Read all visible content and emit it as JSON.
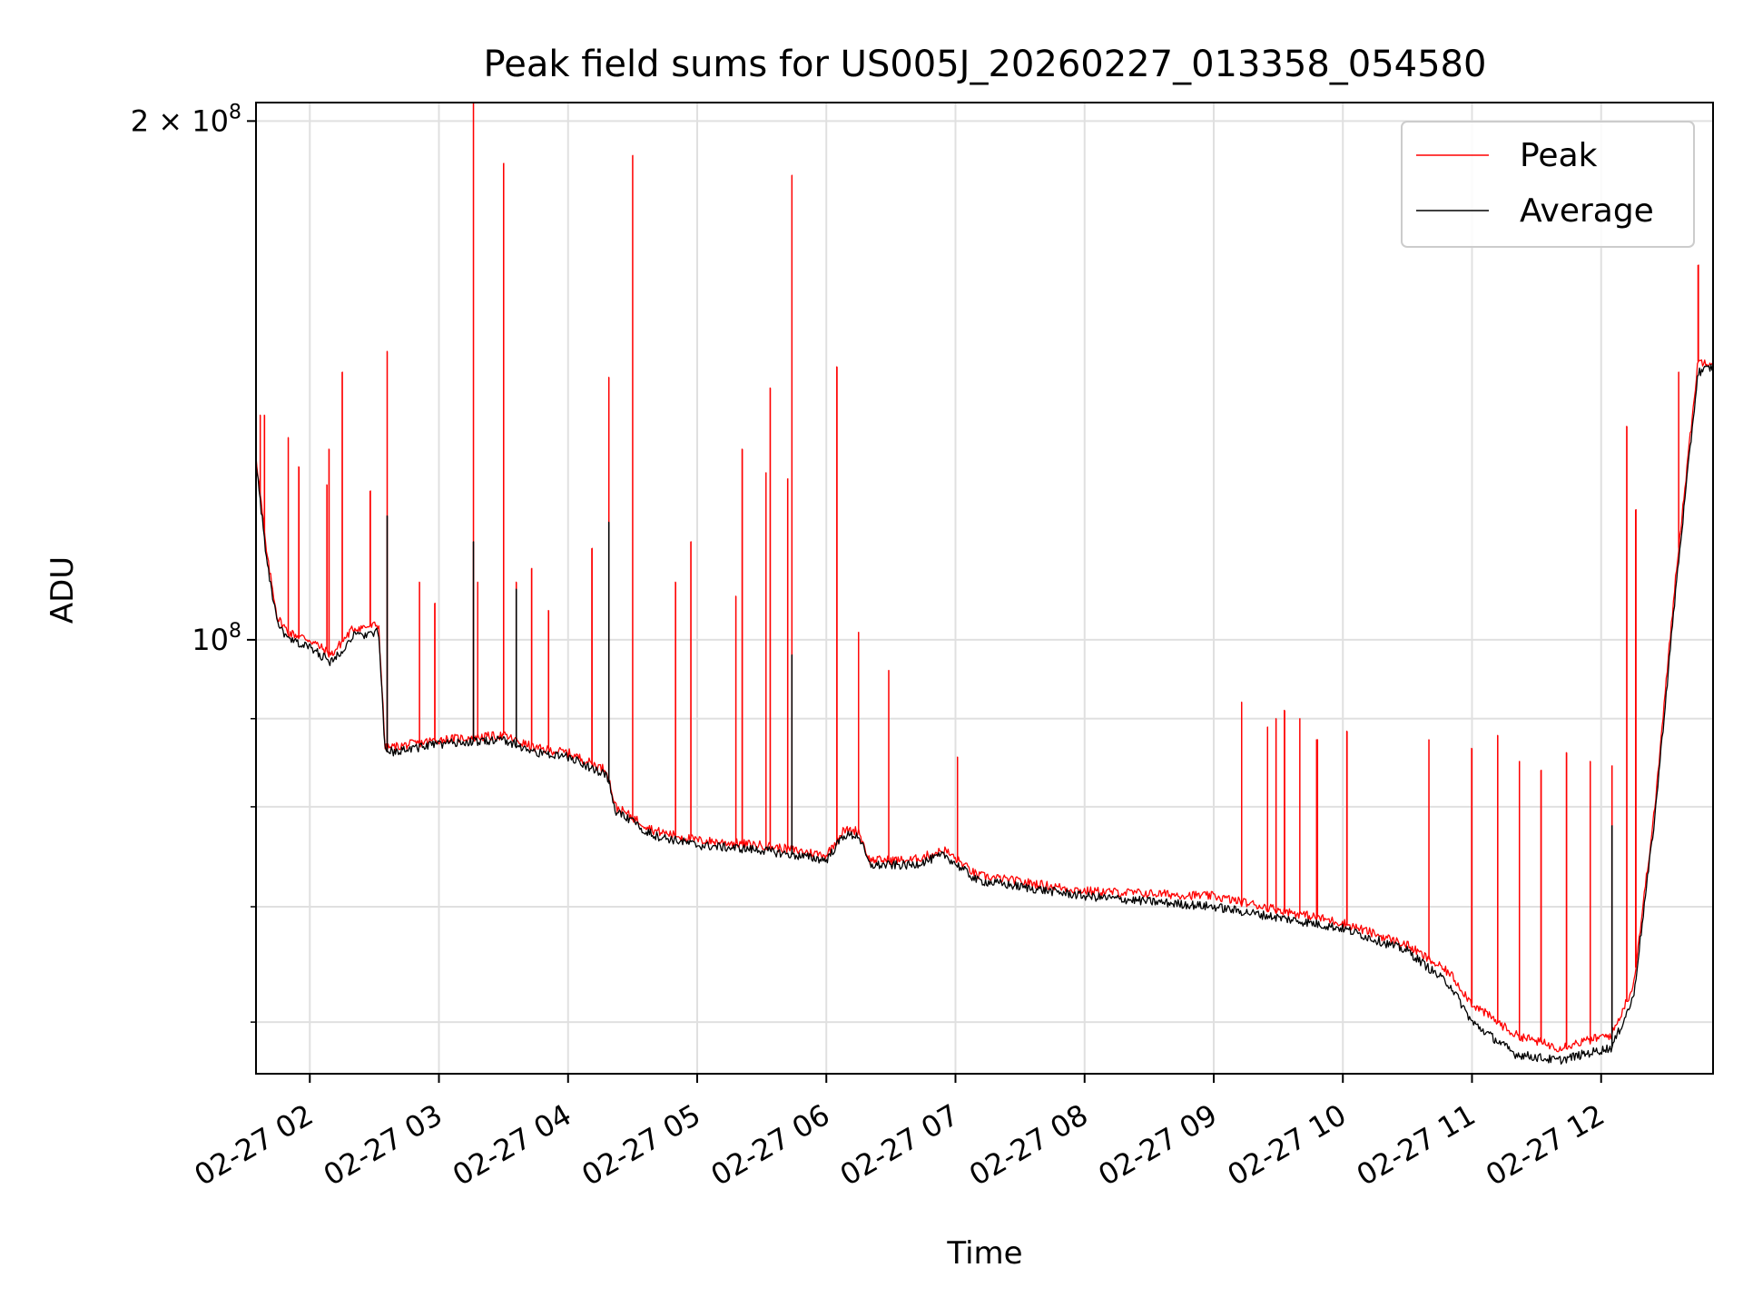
{
  "chart_data": {
    "type": "line",
    "title": "Peak field sums for US005J_20260227_013358_054580",
    "xlabel": "Time",
    "ylabel": "ADU",
    "y_scale": "log",
    "ylim": [
      56000000,
      205000000
    ],
    "xlim": [
      "2026-02-27 01:35",
      "2026-02-27 12:52"
    ],
    "grid": true,
    "legend_position": "top-right",
    "x_ticks": [
      {
        "value": "2026-02-27 02:00",
        "label": "02-27 02"
      },
      {
        "value": "2026-02-27 03:00",
        "label": "02-27 03"
      },
      {
        "value": "2026-02-27 04:00",
        "label": "02-27 04"
      },
      {
        "value": "2026-02-27 05:00",
        "label": "02-27 05"
      },
      {
        "value": "2026-02-27 06:00",
        "label": "02-27 06"
      },
      {
        "value": "2026-02-27 07:00",
        "label": "02-27 07"
      },
      {
        "value": "2026-02-27 08:00",
        "label": "02-27 08"
      },
      {
        "value": "2026-02-27 09:00",
        "label": "02-27 09"
      },
      {
        "value": "2026-02-27 10:00",
        "label": "02-27 10"
      },
      {
        "value": "2026-02-27 11:00",
        "label": "02-27 11"
      },
      {
        "value": "2026-02-27 12:00",
        "label": "02-27 12"
      }
    ],
    "y_major_ticks": [
      {
        "value": 100000000,
        "base": "10",
        "exp": "8",
        "coef": ""
      },
      {
        "value": 200000000,
        "base": "10",
        "exp": "8",
        "coef": "2 × "
      }
    ],
    "y_minor_ticks": [
      60000000,
      70000000,
      80000000,
      90000000
    ],
    "series": [
      {
        "name": "Peak",
        "color": "#ff0000",
        "baseline": [
          [
            "2026-02-27 01:35",
            128000000
          ],
          [
            "2026-02-27 01:40",
            112000000
          ],
          [
            "2026-02-27 01:45",
            103000000
          ],
          [
            "2026-02-27 01:50",
            101000000
          ],
          [
            "2026-02-27 02:00",
            100000000
          ],
          [
            "2026-02-27 02:10",
            98000000
          ],
          [
            "2026-02-27 02:20",
            101500000
          ],
          [
            "2026-02-27 02:32",
            102000000
          ],
          [
            "2026-02-27 02:35",
            86500000
          ],
          [
            "2026-02-27 03:00",
            87500000
          ],
          [
            "2026-02-27 03:30",
            88000000
          ],
          [
            "2026-02-27 03:45",
            86500000
          ],
          [
            "2026-02-27 04:00",
            86000000
          ],
          [
            "2026-02-27 04:18",
            84000000
          ],
          [
            "2026-02-27 04:22",
            80000000
          ],
          [
            "2026-02-27 04:40",
            77500000
          ],
          [
            "2026-02-27 05:00",
            76500000
          ],
          [
            "2026-02-27 05:30",
            76000000
          ],
          [
            "2026-02-27 06:00",
            75000000
          ],
          [
            "2026-02-27 06:08",
            77500000
          ],
          [
            "2026-02-27 06:15",
            77500000
          ],
          [
            "2026-02-27 06:20",
            74500000
          ],
          [
            "2026-02-27 06:40",
            74500000
          ],
          [
            "2026-02-27 06:55",
            75500000
          ],
          [
            "2026-02-27 07:10",
            73000000
          ],
          [
            "2026-02-27 08:00",
            71500000
          ],
          [
            "2026-02-27 09:00",
            71000000
          ],
          [
            "2026-02-27 10:00",
            68500000
          ],
          [
            "2026-02-27 10:30",
            66500000
          ],
          [
            "2026-02-27 10:50",
            64000000
          ],
          [
            "2026-02-27 11:00",
            61500000
          ],
          [
            "2026-02-27 11:20",
            59000000
          ],
          [
            "2026-02-27 11:40",
            58000000
          ],
          [
            "2026-02-27 12:05",
            59000000
          ],
          [
            "2026-02-27 12:15",
            63000000
          ],
          [
            "2026-02-27 12:25",
            80000000
          ],
          [
            "2026-02-27 12:35",
            110000000
          ],
          [
            "2026-02-27 12:45",
            145000000
          ],
          [
            "2026-02-27 12:52",
            145000000
          ]
        ],
        "spikes": [
          [
            "2026-02-27 01:37",
            135000000
          ],
          [
            "2026-02-27 01:39",
            135000000
          ],
          [
            "2026-02-27 01:50",
            131000000
          ],
          [
            "2026-02-27 01:55",
            126000000
          ],
          [
            "2026-02-27 02:08",
            123000000
          ],
          [
            "2026-02-27 02:09",
            129000000
          ],
          [
            "2026-02-27 02:15",
            143000000
          ],
          [
            "2026-02-27 02:28",
            122000000
          ],
          [
            "2026-02-27 02:36",
            147000000
          ],
          [
            "2026-02-27 02:51",
            108000000
          ],
          [
            "2026-02-27 02:58",
            105000000
          ],
          [
            "2026-02-27 03:16",
            205000000
          ],
          [
            "2026-02-27 03:18",
            108000000
          ],
          [
            "2026-02-27 03:30",
            189000000
          ],
          [
            "2026-02-27 03:36",
            108000000
          ],
          [
            "2026-02-27 03:43",
            110000000
          ],
          [
            "2026-02-27 03:51",
            104000000
          ],
          [
            "2026-02-27 04:11",
            113000000
          ],
          [
            "2026-02-27 04:19",
            142000000
          ],
          [
            "2026-02-27 04:30",
            191000000
          ],
          [
            "2026-02-27 04:50",
            108000000
          ],
          [
            "2026-02-27 04:57",
            114000000
          ],
          [
            "2026-02-27 05:18",
            106000000
          ],
          [
            "2026-02-27 05:21",
            129000000
          ],
          [
            "2026-02-27 05:32",
            125000000
          ],
          [
            "2026-02-27 05:34",
            140000000
          ],
          [
            "2026-02-27 05:42",
            124000000
          ],
          [
            "2026-02-27 05:44",
            186000000
          ],
          [
            "2026-02-27 06:05",
            144000000
          ],
          [
            "2026-02-27 06:15",
            101000000
          ],
          [
            "2026-02-27 06:29",
            96000000
          ],
          [
            "2026-02-27 07:01",
            85500000
          ],
          [
            "2026-02-27 09:13",
            92000000
          ],
          [
            "2026-02-27 09:25",
            89000000
          ],
          [
            "2026-02-27 09:29",
            90000000
          ],
          [
            "2026-02-27 09:33",
            91000000
          ],
          [
            "2026-02-27 09:40",
            90000000
          ],
          [
            "2026-02-27 09:48",
            87500000
          ],
          [
            "2026-02-27 10:02",
            88500000
          ],
          [
            "2026-02-27 10:40",
            87500000
          ],
          [
            "2026-02-27 11:00",
            86500000
          ],
          [
            "2026-02-27 11:12",
            88000000
          ],
          [
            "2026-02-27 11:22",
            85000000
          ],
          [
            "2026-02-27 11:32",
            84000000
          ],
          [
            "2026-02-27 11:44",
            86000000
          ],
          [
            "2026-02-27 11:55",
            85000000
          ],
          [
            "2026-02-27 12:05",
            84500000
          ],
          [
            "2026-02-27 12:12",
            133000000
          ],
          [
            "2026-02-27 12:16",
            119000000
          ],
          [
            "2026-02-27 12:36",
            143000000
          ],
          [
            "2026-02-27 12:45",
            165000000
          ]
        ]
      },
      {
        "name": "Average",
        "color": "#000000",
        "baseline": [
          [
            "2026-02-27 01:35",
            127000000
          ],
          [
            "2026-02-27 01:40",
            111000000
          ],
          [
            "2026-02-27 01:45",
            102000000
          ],
          [
            "2026-02-27 01:50",
            100000000
          ],
          [
            "2026-02-27 02:00",
            99000000
          ],
          [
            "2026-02-27 02:10",
            97000000
          ],
          [
            "2026-02-27 02:20",
            100500000
          ],
          [
            "2026-02-27 02:32",
            101000000
          ],
          [
            "2026-02-27 02:35",
            86000000
          ],
          [
            "2026-02-27 03:00",
            87000000
          ],
          [
            "2026-02-27 03:30",
            87500000
          ],
          [
            "2026-02-27 03:45",
            86000000
          ],
          [
            "2026-02-27 04:00",
            85500000
          ],
          [
            "2026-02-27 04:18",
            83500000
          ],
          [
            "2026-02-27 04:22",
            79500000
          ],
          [
            "2026-02-27 04:40",
            77000000
          ],
          [
            "2026-02-27 05:00",
            76000000
          ],
          [
            "2026-02-27 05:30",
            75500000
          ],
          [
            "2026-02-27 06:00",
            74500000
          ],
          [
            "2026-02-27 06:08",
            77000000
          ],
          [
            "2026-02-27 06:15",
            77000000
          ],
          [
            "2026-02-27 06:20",
            74000000
          ],
          [
            "2026-02-27 06:40",
            74000000
          ],
          [
            "2026-02-27 06:55",
            75000000
          ],
          [
            "2026-02-27 07:10",
            72500000
          ],
          [
            "2026-02-27 08:00",
            71000000
          ],
          [
            "2026-02-27 09:00",
            70000000
          ],
          [
            "2026-02-27 10:00",
            68000000
          ],
          [
            "2026-02-27 10:30",
            66000000
          ],
          [
            "2026-02-27 10:50",
            63000000
          ],
          [
            "2026-02-27 11:00",
            60000000
          ],
          [
            "2026-02-27 11:20",
            57500000
          ],
          [
            "2026-02-27 11:40",
            57000000
          ],
          [
            "2026-02-27 12:05",
            58000000
          ],
          [
            "2026-02-27 12:15",
            62000000
          ],
          [
            "2026-02-27 12:25",
            79000000
          ],
          [
            "2026-02-27 12:35",
            108000000
          ],
          [
            "2026-02-27 12:45",
            143000000
          ],
          [
            "2026-02-27 12:52",
            144000000
          ]
        ],
        "spikes": [
          [
            "2026-02-27 02:36",
            118000000
          ],
          [
            "2026-02-27 03:16",
            114000000
          ],
          [
            "2026-02-27 03:36",
            107000000
          ],
          [
            "2026-02-27 04:19",
            117000000
          ],
          [
            "2026-02-27 05:44",
            98000000
          ],
          [
            "2026-02-27 12:05",
            78000000
          ]
        ]
      }
    ]
  }
}
